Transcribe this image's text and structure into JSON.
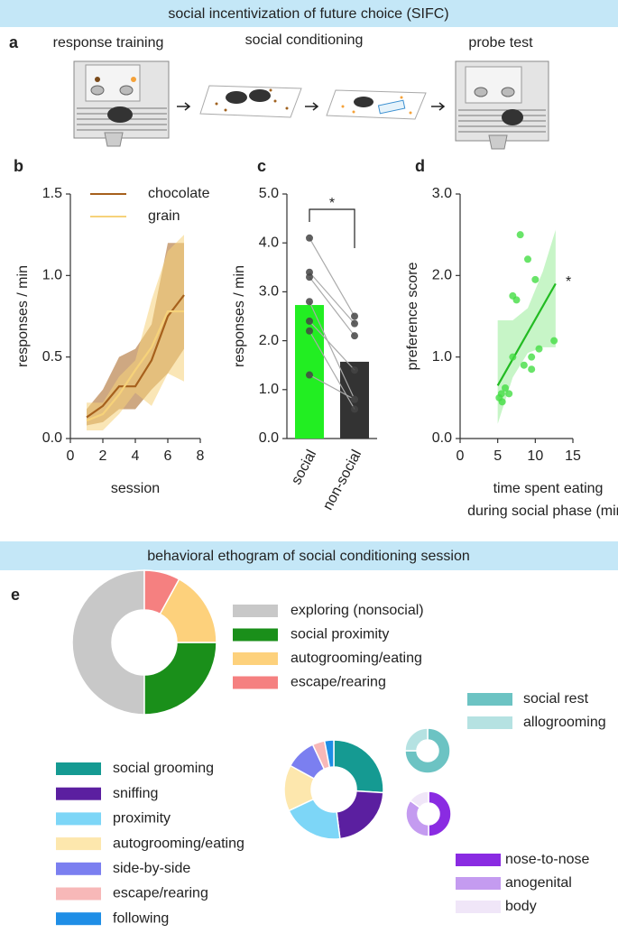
{
  "banners": [
    "social incentivization of future choice (SIFC)",
    "behavioral ethogram of social conditioning session"
  ],
  "panel_a": {
    "label": "a",
    "steps": [
      "response training",
      "social conditioning",
      "probe test"
    ]
  },
  "chart_data": [
    {
      "type": "line",
      "panel": "b",
      "xlabel": "session",
      "ylabel": "responses / min",
      "x": [
        1,
        2,
        3,
        4,
        5,
        6,
        7
      ],
      "xlim": [
        0,
        8
      ],
      "xticks": [
        0,
        2,
        4,
        6,
        8
      ],
      "ylim": [
        0,
        1.5
      ],
      "yticks": [
        {
          "value": 0,
          "label": "0.0"
        },
        0.5,
        {
          "value": 1,
          "label": "1.0"
        },
        1.5
      ],
      "series": [
        {
          "name": "chocolate",
          "color": "#a6601c",
          "values": [
            0.13,
            0.2,
            0.32,
            0.32,
            0.48,
            0.75,
            0.88
          ],
          "lower": [
            0.08,
            0.1,
            0.18,
            0.18,
            0.3,
            0.4,
            0.55
          ],
          "upper": [
            0.18,
            0.3,
            0.5,
            0.55,
            0.7,
            1.2,
            1.2
          ]
        },
        {
          "name": "grain",
          "color": "#f6d27a",
          "values": [
            0.11,
            0.15,
            0.27,
            0.42,
            0.56,
            0.78,
            0.78
          ],
          "lower": [
            0.05,
            0.05,
            0.15,
            0.28,
            0.2,
            0.4,
            0.35
          ],
          "upper": [
            0.22,
            0.22,
            0.38,
            0.48,
            0.85,
            1.15,
            1.25
          ]
        }
      ]
    },
    {
      "type": "bar",
      "panel": "c",
      "ylabel": "responses / min",
      "categories": [
        "social",
        "non-social"
      ],
      "values": [
        2.73,
        1.57
      ],
      "colors": [
        "#22ee22",
        "#333333"
      ],
      "points": [
        [
          4.1,
          3.4,
          3.3,
          2.8,
          2.4,
          2.2,
          1.3
        ],
        [
          2.5,
          2.35,
          2.1,
          0.8,
          1.4,
          0.6,
          0.8
        ]
      ],
      "significance": "*",
      "ylim": [
        0,
        5
      ],
      "yticks": [
        {
          "value": 0,
          "label": "0.0"
        },
        {
          "value": 1,
          "label": "1.0"
        },
        {
          "value": 2,
          "label": "2.0"
        },
        {
          "value": 3,
          "label": "3.0"
        },
        {
          "value": 4,
          "label": "4.0"
        },
        {
          "value": 5,
          "label": "5.0"
        }
      ]
    },
    {
      "type": "scatter",
      "panel": "d",
      "xlabel": [
        "time spent eating",
        "during social phase (min)"
      ],
      "ylabel": "preference score",
      "color": "#44dd44",
      "annotation": "*",
      "x": [
        5.2,
        5.5,
        5.6,
        6.0,
        6.5,
        7.0,
        7.0,
        7.5,
        8.0,
        8.5,
        9.0,
        9.5,
        9.5,
        10.0,
        10.5,
        12.5
      ],
      "y": [
        0.5,
        0.55,
        0.45,
        0.62,
        0.55,
        1.0,
        1.75,
        1.7,
        2.5,
        0.9,
        2.2,
        0.85,
        1.0,
        1.95,
        1.1,
        1.2
      ],
      "fit": {
        "x": [
          5,
          12.7
        ],
        "y": [
          0.65,
          1.9
        ]
      },
      "fit_band": {
        "x": [
          5,
          7,
          9,
          11,
          12.7
        ],
        "lower": [
          0.18,
          0.75,
          1.05,
          1.12,
          1.12
        ],
        "upper": [
          1.45,
          1.45,
          1.6,
          2.05,
          2.56
        ]
      },
      "xlim": [
        0,
        15
      ],
      "xticks": [
        0,
        5,
        10,
        15
      ],
      "ylim": [
        0,
        3
      ],
      "yticks": [
        {
          "value": 0,
          "label": "0.0"
        },
        {
          "value": 1,
          "label": "1.0"
        },
        {
          "value": 2,
          "label": "2.0"
        },
        {
          "value": 3,
          "label": "3.0"
        }
      ]
    },
    {
      "type": "pie",
      "panel": "e",
      "direction": "counterclockwise",
      "categories": [
        "exploring (nonsocial)",
        "social proximity",
        "autogrooming/eating",
        "escape/rearing"
      ],
      "values": [
        50,
        25,
        17,
        8
      ],
      "colors": [
        "#c8c8c8",
        "#1a8f1a",
        "#fdd17c",
        "#f58080"
      ]
    },
    {
      "type": "pie",
      "direction": "clockwise",
      "categories": [
        "social grooming",
        "sniffing",
        "proximity",
        "autogrooming/eating",
        "side-by-side",
        "escape/rearing",
        "following"
      ],
      "values": [
        26,
        22,
        20,
        15,
        10,
        4,
        3
      ],
      "colors": [
        "#159a92",
        "#5b1fa0",
        "#7dd6f7",
        "#fde7ad",
        "#7b7ff0",
        "#f7b8b8",
        "#1f8ee6"
      ]
    },
    {
      "type": "pie",
      "direction": "clockwise",
      "categories": [
        "social rest",
        "allogrooming"
      ],
      "values": [
        75,
        25
      ],
      "colors": [
        "#6cc3c3",
        "#b5e2e2"
      ]
    },
    {
      "type": "pie",
      "direction": "clockwise",
      "categories": [
        "nose-to-nose",
        "anogenital",
        "body"
      ],
      "values": [
        50,
        35,
        15
      ],
      "colors": [
        "#8a2be2",
        "#c49bf0",
        "#f0e6f8"
      ]
    }
  ]
}
